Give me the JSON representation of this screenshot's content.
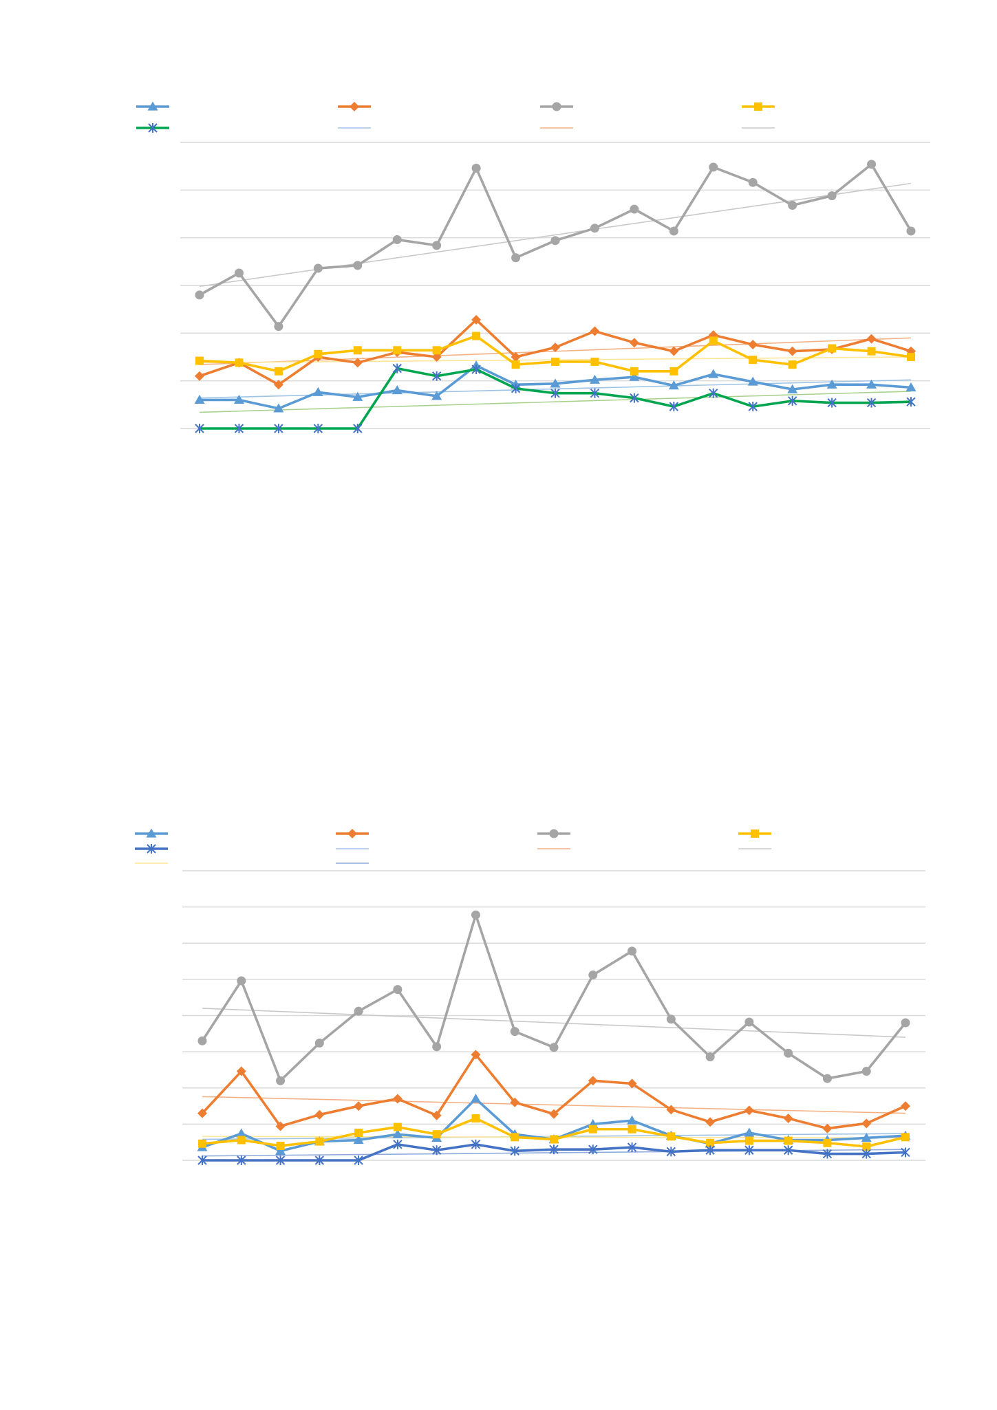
{
  "chart_data": [
    {
      "type": "line",
      "title": "",
      "xlabel": "",
      "ylabel": "",
      "ylim": [
        0,
        6
      ],
      "grid": true,
      "legend_position": "top",
      "x": [
        1,
        2,
        3,
        4,
        5,
        6,
        7,
        8,
        9,
        10,
        11,
        12,
        13,
        14,
        15,
        16,
        17,
        18,
        19
      ],
      "series": [
        {
          "marker": "triangle",
          "color": "#5b9bd5",
          "values": [
            0.6,
            0.6,
            0.42,
            0.76,
            0.66,
            0.8,
            0.68,
            1.32,
            0.92,
            0.94,
            1.02,
            1.08,
            0.9,
            1.14,
            0.98,
            0.82,
            0.92,
            0.92,
            0.86
          ]
        },
        {
          "marker": "diamond",
          "color": "#ed7d31",
          "values": [
            1.1,
            1.38,
            0.92,
            1.5,
            1.38,
            1.6,
            1.5,
            2.28,
            1.5,
            1.7,
            2.04,
            1.8,
            1.62,
            1.96,
            1.76,
            1.62,
            1.66,
            1.88,
            1.62
          ]
        },
        {
          "marker": "circle",
          "color": "#a5a5a5",
          "values": [
            2.8,
            3.26,
            2.14,
            3.36,
            3.42,
            3.96,
            3.84,
            5.46,
            3.58,
            3.94,
            4.2,
            4.6,
            4.14,
            5.48,
            5.16,
            4.68,
            4.88,
            5.54,
            4.14
          ]
        },
        {
          "marker": "square",
          "color": "#ffc000",
          "values": [
            1.42,
            1.38,
            1.2,
            1.56,
            1.64,
            1.64,
            1.64,
            1.94,
            1.34,
            1.4,
            1.4,
            1.2,
            1.2,
            1.84,
            1.44,
            1.34,
            1.68,
            1.62,
            1.5
          ]
        },
        {
          "marker": "star",
          "color": "#00a550",
          "marker_color": "#4472c4",
          "values": [
            0,
            0,
            0,
            0,
            0,
            1.26,
            1.1,
            1.24,
            0.84,
            0.74,
            0.74,
            0.64,
            0.46,
            0.74,
            0.46,
            0.58,
            0.54,
            0.54,
            0.56
          ]
        }
      ],
      "trendlines": [
        {
          "of_series": 0,
          "color": "#9dc3e6",
          "start": 0.64,
          "end": 1.02
        },
        {
          "of_series": 1,
          "color": "#f4b183",
          "start": 1.34,
          "end": 1.9
        },
        {
          "of_series": 2,
          "color": "#c9c9c9",
          "start": 2.98,
          "end": 5.14
        },
        {
          "of_series": 3,
          "color": "#ffe699",
          "start": 1.38,
          "end": 1.5
        },
        {
          "of_series": 4,
          "color": "#a9d18e",
          "start": 0.34,
          "end": 0.78
        }
      ]
    },
    {
      "type": "line",
      "title": "",
      "xlabel": "",
      "ylabel": "",
      "ylim": [
        0,
        8
      ],
      "grid": true,
      "legend_position": "top",
      "x": [
        1,
        2,
        3,
        4,
        5,
        6,
        7,
        8,
        9,
        10,
        11,
        12,
        13,
        14,
        15,
        16,
        17,
        18,
        19
      ],
      "series": [
        {
          "marker": "triangle",
          "color": "#5b9bd5",
          "values": [
            0.36,
            0.74,
            0.26,
            0.52,
            0.56,
            0.72,
            0.62,
            1.7,
            0.72,
            0.58,
            1.0,
            1.1,
            0.68,
            0.46,
            0.76,
            0.56,
            0.56,
            0.62,
            0.68
          ]
        },
        {
          "marker": "diamond",
          "color": "#ed7d31",
          "values": [
            1.3,
            2.46,
            0.94,
            1.26,
            1.5,
            1.7,
            1.24,
            2.92,
            1.6,
            1.28,
            2.2,
            2.12,
            1.4,
            1.06,
            1.38,
            1.16,
            0.88,
            1.02,
            1.5
          ]
        },
        {
          "marker": "circle",
          "color": "#a5a5a5",
          "values": [
            3.3,
            4.96,
            2.2,
            3.24,
            4.12,
            4.72,
            3.14,
            6.78,
            3.56,
            3.12,
            5.12,
            5.78,
            3.9,
            2.86,
            3.82,
            2.96,
            2.26,
            2.46,
            3.8
          ]
        },
        {
          "marker": "square",
          "color": "#ffc000",
          "values": [
            0.46,
            0.56,
            0.4,
            0.52,
            0.76,
            0.92,
            0.72,
            1.16,
            0.64,
            0.58,
            0.86,
            0.86,
            0.66,
            0.48,
            0.54,
            0.54,
            0.48,
            0.38,
            0.64
          ]
        },
        {
          "marker": "star",
          "color": "#4472c4",
          "values": [
            0,
            0,
            0,
            0,
            0,
            0.44,
            0.28,
            0.44,
            0.26,
            0.3,
            0.3,
            0.36,
            0.24,
            0.28,
            0.28,
            0.28,
            0.18,
            0.18,
            0.22
          ]
        }
      ],
      "trendlines": [
        {
          "of_series": 0,
          "color": "#9dc3e6",
          "start": 0.58,
          "end": 0.74
        },
        {
          "of_series": 1,
          "color": "#f4b183",
          "start": 1.76,
          "end": 1.3
        },
        {
          "of_series": 2,
          "color": "#c9c9c9",
          "start": 4.2,
          "end": 3.4
        },
        {
          "of_series": 3,
          "color": "#ffe699",
          "start": 0.66,
          "end": 0.62
        },
        {
          "of_series": 4,
          "color": "#8faadc",
          "start": 0.12,
          "end": 0.3
        }
      ]
    }
  ]
}
